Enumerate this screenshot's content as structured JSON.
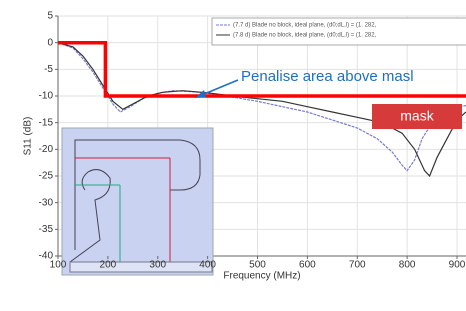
{
  "chart_data": {
    "type": "line",
    "xlabel": "Frequency (MHz)",
    "ylabel": "S11 (dB)",
    "xlim": [
      100,
      918
    ],
    "ylim": [
      -40,
      5
    ],
    "xticks": [
      100,
      200,
      300,
      400,
      500,
      600,
      700,
      800,
      900
    ],
    "yticks": [
      5,
      0,
      -5,
      -10,
      -15,
      -20,
      -25,
      -30,
      -35,
      -40
    ],
    "grid": true,
    "series": [
      {
        "name": "(7.7 d) Blade no block, ideal plane, (d0;dL,l) = (1. 282,",
        "color": "#7a7ad0",
        "x": [
          100,
          130,
          150,
          170,
          190,
          210,
          225,
          245,
          270,
          300,
          330,
          370,
          400,
          450,
          500,
          550,
          600,
          650,
          700,
          740,
          770,
          790,
          800,
          815,
          830,
          850,
          870,
          900,
          918
        ],
        "values": [
          0,
          -1,
          -3,
          -5.5,
          -8.5,
          -11.5,
          -13,
          -12,
          -10.5,
          -9.5,
          -9,
          -9.2,
          -9.5,
          -10.2,
          -11,
          -12,
          -13,
          -14.5,
          -16,
          -18,
          -20.5,
          -23,
          -24,
          -22,
          -18,
          -15,
          -13,
          -12,
          -11.8
        ]
      },
      {
        "name": "(7.8 d) Blade no block, ideal plane, (d0;dL,l) = (1. 282,",
        "color": "#333333",
        "x": [
          100,
          130,
          150,
          170,
          190,
          210,
          230,
          250,
          280,
          310,
          350,
          400,
          450,
          500,
          550,
          600,
          650,
          700,
          750,
          790,
          815,
          835,
          845,
          860,
          880,
          900,
          918
        ],
        "values": [
          0,
          -0.8,
          -2.5,
          -5,
          -8,
          -11,
          -12.5,
          -11.5,
          -10,
          -9.3,
          -9,
          -9.4,
          -10,
          -10.5,
          -11,
          -12,
          -13,
          -14,
          -15,
          -17,
          -20,
          -24,
          -25,
          -21.5,
          -18,
          -14.5,
          -13
        ]
      },
      {
        "name": "mask",
        "color": "#ff0000",
        "x": [
          100,
          195,
          195,
          918
        ],
        "values": [
          0,
          0,
          -10,
          -10
        ]
      }
    ],
    "annotation": "Penalise area above masl"
  }
}
